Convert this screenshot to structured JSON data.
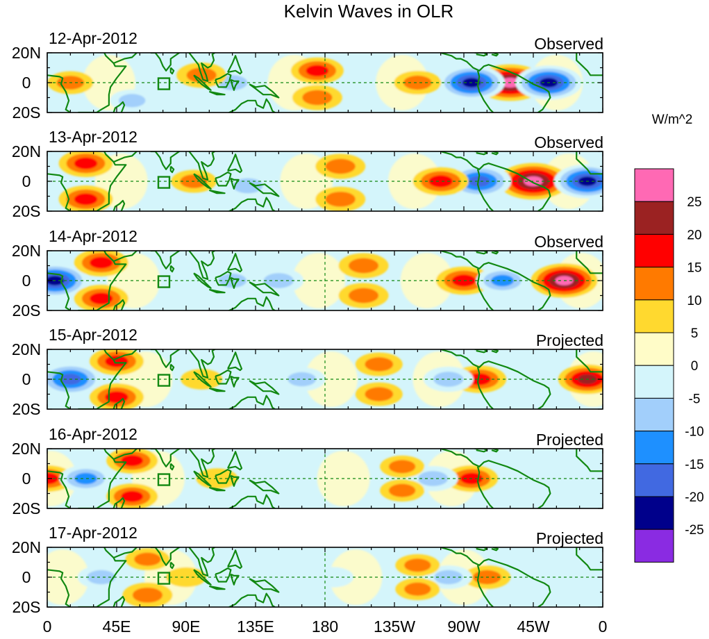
{
  "chart_data": {
    "type": "heatmap",
    "title": "Kelvin Waves in OLR",
    "units": "W/m^2",
    "x_ticks": [
      "0",
      "45E",
      "90E",
      "135E",
      "180",
      "135W",
      "90W",
      "45W",
      "0"
    ],
    "y_ticks": [
      "20N",
      "0",
      "20S"
    ],
    "lon_range": [
      0,
      360
    ],
    "lat_range": [
      -20,
      20
    ],
    "colorbar": {
      "levels": [
        25,
        20,
        15,
        10,
        5,
        0,
        -5,
        -10,
        -15,
        -20,
        -25
      ],
      "colors": [
        "#ff69b4",
        "#9b2222",
        "#ff0000",
        "#ff7a00",
        "#ffd92f",
        "#fffcc8",
        "#d4f5fb",
        "#a2cffb",
        "#1e90ff",
        "#4169e1",
        "#00008b",
        "#8a2be2"
      ]
    },
    "panels": [
      {
        "date": "12-Apr-2012",
        "status": "Observed",
        "anomalies": [
          {
            "lon": 300,
            "lat": 0,
            "value": 27
          },
          {
            "lon": 275,
            "lat": 0,
            "value": -24
          },
          {
            "lon": 325,
            "lat": 0,
            "value": -24
          },
          {
            "lon": 240,
            "lat": 0,
            "value": 10
          },
          {
            "lon": 175,
            "lat": 8,
            "value": 14
          },
          {
            "lon": 175,
            "lat": -10,
            "value": 12
          },
          {
            "lon": 120,
            "lat": 0,
            "value": -12
          },
          {
            "lon": 100,
            "lat": 5,
            "value": 12
          },
          {
            "lon": 15,
            "lat": 0,
            "value": 9
          },
          {
            "lon": 55,
            "lat": -12,
            "value": -8
          }
        ]
      },
      {
        "date": "13-Apr-2012",
        "status": "Observed",
        "anomalies": [
          {
            "lon": 315,
            "lat": 0,
            "value": 27
          },
          {
            "lon": 280,
            "lat": 0,
            "value": -22
          },
          {
            "lon": 350,
            "lat": 0,
            "value": -24
          },
          {
            "lon": 255,
            "lat": 0,
            "value": 16
          },
          {
            "lon": 190,
            "lat": 10,
            "value": 12
          },
          {
            "lon": 190,
            "lat": -12,
            "value": 12
          },
          {
            "lon": 25,
            "lat": 12,
            "value": 15
          },
          {
            "lon": 25,
            "lat": -12,
            "value": 15
          },
          {
            "lon": 130,
            "lat": -3,
            "value": -12
          },
          {
            "lon": 95,
            "lat": 0,
            "value": 9
          }
        ]
      },
      {
        "date": "14-Apr-2012",
        "status": "Observed",
        "anomalies": [
          {
            "lon": 335,
            "lat": 0,
            "value": 24
          },
          {
            "lon": 270,
            "lat": 0,
            "value": 16
          },
          {
            "lon": 295,
            "lat": 0,
            "value": -14
          },
          {
            "lon": 5,
            "lat": 0,
            "value": -24
          },
          {
            "lon": 35,
            "lat": 12,
            "value": 15
          },
          {
            "lon": 35,
            "lat": -12,
            "value": 15
          },
          {
            "lon": 205,
            "lat": 10,
            "value": 12
          },
          {
            "lon": 205,
            "lat": -10,
            "value": 12
          },
          {
            "lon": 150,
            "lat": 0,
            "value": -12
          },
          {
            "lon": 120,
            "lat": 0,
            "value": -10
          }
        ]
      },
      {
        "date": "15-Apr-2012",
        "status": "Projected",
        "anomalies": [
          {
            "lon": 350,
            "lat": 0,
            "value": 18
          },
          {
            "lon": 280,
            "lat": 0,
            "value": 15
          },
          {
            "lon": 260,
            "lat": 0,
            "value": -12
          },
          {
            "lon": 15,
            "lat": 0,
            "value": -22
          },
          {
            "lon": 45,
            "lat": 12,
            "value": 15
          },
          {
            "lon": 45,
            "lat": -12,
            "value": 15
          },
          {
            "lon": 215,
            "lat": 10,
            "value": 10
          },
          {
            "lon": 215,
            "lat": -10,
            "value": 10
          },
          {
            "lon": 165,
            "lat": 0,
            "value": -10
          },
          {
            "lon": 100,
            "lat": 0,
            "value": 6
          }
        ]
      },
      {
        "date": "16-Apr-2012",
        "status": "Projected",
        "anomalies": [
          {
            "lon": 275,
            "lat": 0,
            "value": 14
          },
          {
            "lon": 250,
            "lat": 0,
            "value": -12
          },
          {
            "lon": 0,
            "lat": 0,
            "value": 14
          },
          {
            "lon": 25,
            "lat": 0,
            "value": -14
          },
          {
            "lon": 55,
            "lat": 12,
            "value": 13
          },
          {
            "lon": 55,
            "lat": -12,
            "value": 13
          },
          {
            "lon": 230,
            "lat": 8,
            "value": 8
          },
          {
            "lon": 230,
            "lat": -8,
            "value": 8
          },
          {
            "lon": 155,
            "lat": 0,
            "value": -7
          },
          {
            "lon": 110,
            "lat": 0,
            "value": 6
          }
        ]
      },
      {
        "date": "17-Apr-2012",
        "status": "Projected",
        "anomalies": [
          {
            "lon": 285,
            "lat": 0,
            "value": 10
          },
          {
            "lon": 260,
            "lat": 0,
            "value": -10
          },
          {
            "lon": 35,
            "lat": 0,
            "value": -10
          },
          {
            "lon": 65,
            "lat": -12,
            "value": 12
          },
          {
            "lon": 65,
            "lat": 12,
            "value": 8
          },
          {
            "lon": 240,
            "lat": 8,
            "value": 8
          },
          {
            "lon": 240,
            "lat": -8,
            "value": 8
          },
          {
            "lon": 185,
            "lat": 0,
            "value": -6
          },
          {
            "lon": 90,
            "lat": 0,
            "value": 5
          },
          {
            "lon": 120,
            "lat": 0,
            "value": -5
          }
        ]
      }
    ]
  }
}
